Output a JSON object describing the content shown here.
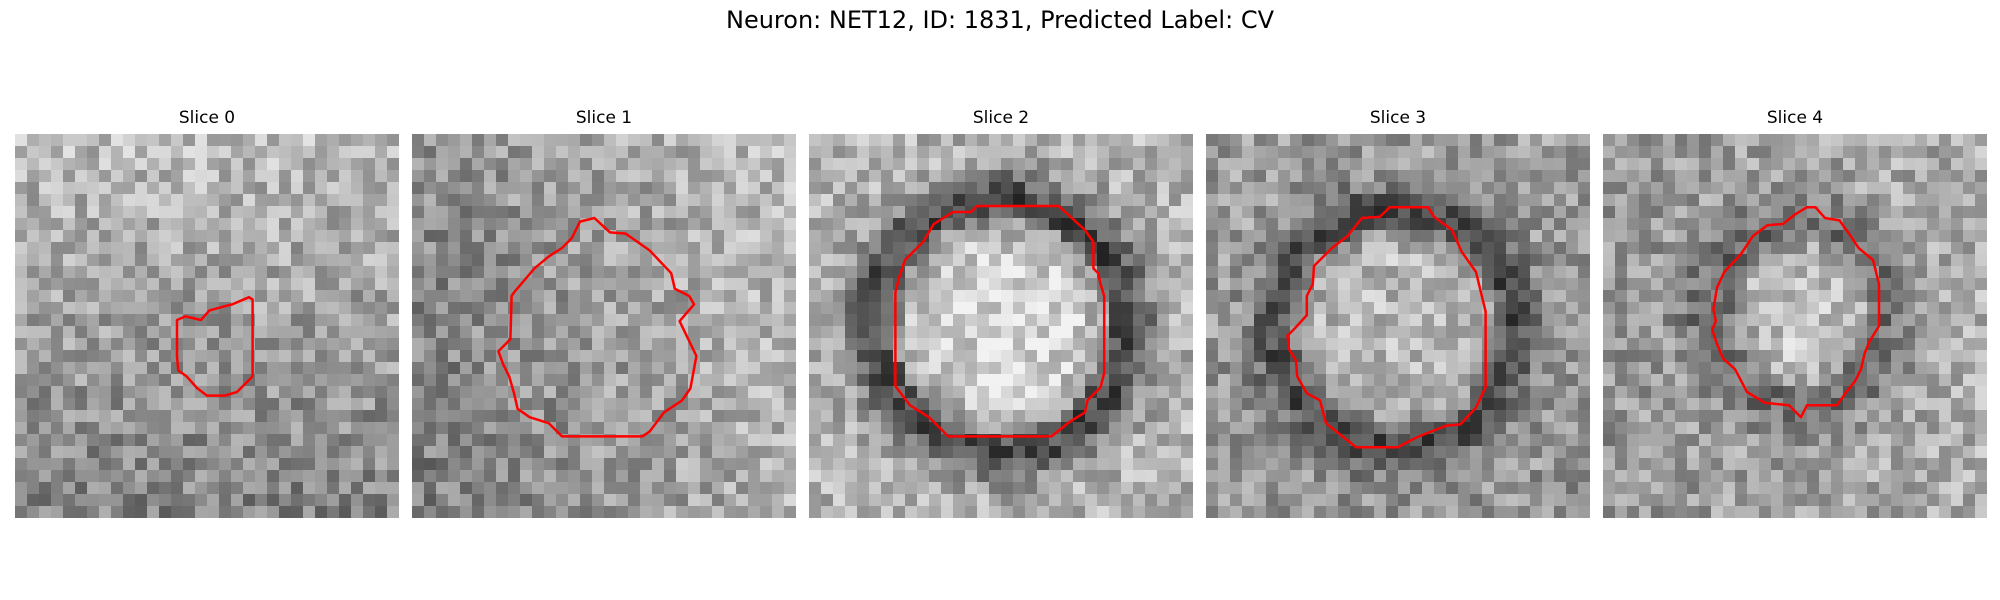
{
  "figure": {
    "title": "Neuron: NET12, ID: 1831, Predicted Label: CV",
    "contour_color": "#ff0000",
    "grid_size": 32
  },
  "slices": [
    {
      "label": "Slice 0",
      "contour": [
        [
          13.5,
          15.5
        ],
        [
          14.2,
          15.2
        ],
        [
          15.5,
          15.5
        ],
        [
          16.2,
          14.7
        ],
        [
          17.3,
          14.4
        ],
        [
          18.1,
          14.2
        ],
        [
          19.5,
          13.6
        ],
        [
          19.8,
          13.8
        ],
        [
          19.8,
          20.2
        ],
        [
          19.0,
          21.0
        ],
        [
          18.5,
          21.5
        ],
        [
          17.5,
          21.8
        ],
        [
          16.0,
          21.8
        ],
        [
          15.2,
          21.2
        ],
        [
          14.3,
          20.2
        ],
        [
          13.6,
          19.7
        ],
        [
          13.5,
          18.5
        ]
      ]
    },
    {
      "label": "Slice 1",
      "contour": [
        [
          8.5,
          13.2
        ],
        [
          10.2,
          11.2
        ],
        [
          11.4,
          10.2
        ],
        [
          12.5,
          9.5
        ],
        [
          13.3,
          8.7
        ],
        [
          14.0,
          7.3
        ],
        [
          15.2,
          7.0
        ],
        [
          16.5,
          8.2
        ],
        [
          17.8,
          8.3
        ],
        [
          19.8,
          9.7
        ],
        [
          21.6,
          11.6
        ],
        [
          21.9,
          12.9
        ],
        [
          23.1,
          13.5
        ],
        [
          23.5,
          14.2
        ],
        [
          22.3,
          15.6
        ],
        [
          23.7,
          18.5
        ],
        [
          23.2,
          21.2
        ],
        [
          22.5,
          22.2
        ],
        [
          21.0,
          23.2
        ],
        [
          19.8,
          24.8
        ],
        [
          19.2,
          25.2
        ],
        [
          12.5,
          25.2
        ],
        [
          11.4,
          24.1
        ],
        [
          9.8,
          23.6
        ],
        [
          8.8,
          22.9
        ],
        [
          8.5,
          21.6
        ],
        [
          8.1,
          20.2
        ],
        [
          7.6,
          19.2
        ],
        [
          7.2,
          18.1
        ],
        [
          8.2,
          17.1
        ],
        [
          8.3,
          13.5
        ]
      ]
    },
    {
      "label": "Slice 2",
      "contour": [
        [
          8.0,
          10.5
        ],
        [
          9.5,
          9.0
        ],
        [
          10.4,
          7.5
        ],
        [
          12.0,
          6.5
        ],
        [
          13.5,
          6.5
        ],
        [
          14.0,
          6.0
        ],
        [
          20.8,
          6.0
        ],
        [
          23.0,
          8.0
        ],
        [
          23.7,
          9.0
        ],
        [
          23.7,
          11.2
        ],
        [
          24.1,
          11.6
        ],
        [
          24.3,
          12.5
        ],
        [
          24.6,
          13.5
        ],
        [
          24.6,
          19.9
        ],
        [
          24.3,
          21.1
        ],
        [
          23.8,
          21.6
        ],
        [
          23.2,
          22.2
        ],
        [
          23.0,
          23.2
        ],
        [
          21.7,
          24.0
        ],
        [
          20.2,
          25.2
        ],
        [
          11.6,
          25.2
        ],
        [
          10.0,
          23.6
        ],
        [
          8.4,
          22.6
        ],
        [
          7.2,
          21.0
        ],
        [
          7.2,
          13.2
        ],
        [
          7.5,
          12.0
        ]
      ]
    },
    {
      "label": "Slice 3",
      "contour": [
        [
          9.0,
          11.0
        ],
        [
          10.5,
          9.5
        ],
        [
          11.8,
          8.5
        ],
        [
          13.0,
          7.0
        ],
        [
          14.5,
          6.9
        ],
        [
          15.3,
          6.1
        ],
        [
          18.5,
          6.1
        ],
        [
          19.0,
          6.9
        ],
        [
          20.5,
          8.0
        ],
        [
          21.3,
          9.8
        ],
        [
          22.5,
          11.5
        ],
        [
          23.3,
          14.8
        ],
        [
          23.3,
          21.1
        ],
        [
          22.5,
          22.8
        ],
        [
          21.2,
          24.2
        ],
        [
          20.0,
          24.3
        ],
        [
          17.5,
          25.3
        ],
        [
          16.0,
          26.1
        ],
        [
          12.5,
          26.1
        ],
        [
          10.0,
          24.1
        ],
        [
          9.5,
          22.2
        ],
        [
          8.4,
          21.6
        ],
        [
          7.6,
          20.2
        ],
        [
          7.5,
          18.9
        ],
        [
          6.9,
          17.9
        ],
        [
          6.8,
          16.8
        ],
        [
          7.4,
          16.2
        ],
        [
          8.4,
          15.1
        ],
        [
          8.4,
          13.5
        ],
        [
          8.9,
          12.5
        ]
      ]
    },
    {
      "label": "Slice 4",
      "contour": [
        [
          10.1,
          11.5
        ],
        [
          11.5,
          10.0
        ],
        [
          12.5,
          8.5
        ],
        [
          13.7,
          7.6
        ],
        [
          15.0,
          7.5
        ],
        [
          16.0,
          6.7
        ],
        [
          17.0,
          6.1
        ],
        [
          17.7,
          6.1
        ],
        [
          18.5,
          7.0
        ],
        [
          19.7,
          7.2
        ],
        [
          20.5,
          8.3
        ],
        [
          21.3,
          9.5
        ],
        [
          22.5,
          10.5
        ],
        [
          23.0,
          12.5
        ],
        [
          23.0,
          16.0
        ],
        [
          22.2,
          17.3
        ],
        [
          21.8,
          18.3
        ],
        [
          21.5,
          19.6
        ],
        [
          21.0,
          20.6
        ],
        [
          20.2,
          21.6
        ],
        [
          19.5,
          22.6
        ],
        [
          17.0,
          22.6
        ],
        [
          16.5,
          23.6
        ],
        [
          15.5,
          22.6
        ],
        [
          13.5,
          22.4
        ],
        [
          12.0,
          21.5
        ],
        [
          11.0,
          19.6
        ],
        [
          10.0,
          18.7
        ],
        [
          9.5,
          17.5
        ],
        [
          9.1,
          16.3
        ],
        [
          9.4,
          15.6
        ],
        [
          9.2,
          14.6
        ],
        [
          9.5,
          12.8
        ]
      ]
    }
  ]
}
